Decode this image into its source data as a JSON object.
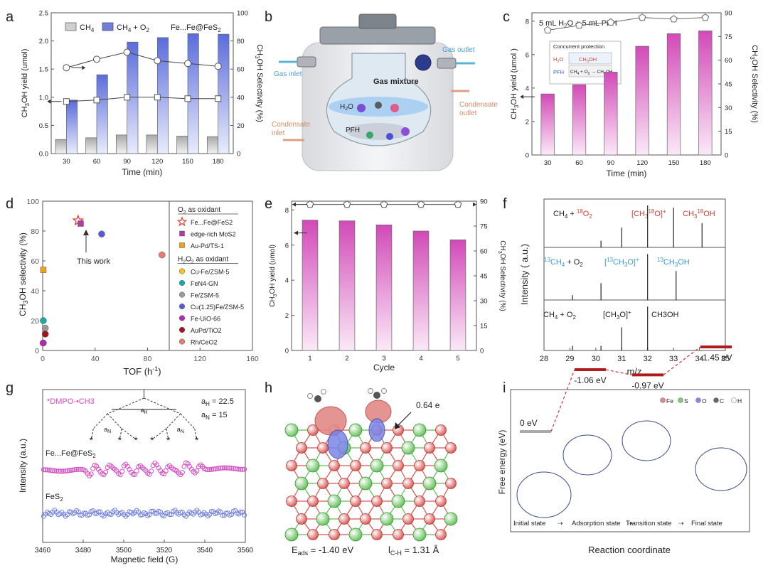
{
  "panel_letters": [
    "a",
    "b",
    "c",
    "d",
    "e",
    "f",
    "g",
    "h",
    "i"
  ],
  "chart_data": [
    {
      "panel": "a",
      "type": "bar",
      "categories": [
        "30",
        "60",
        "90",
        "120",
        "150",
        "180"
      ],
      "xlabel": "Time (min)",
      "ylabel": "CH3OH yield (umol)",
      "ylabel_right": "CH3OH Selectivity (%)",
      "ylim": [
        0,
        2.5
      ],
      "ylim_right": [
        0,
        100
      ],
      "yticks": [
        "0.0",
        "0.5",
        "1.0",
        "1.5",
        "2.0",
        "2.5"
      ],
      "yticks_right": [
        "0",
        "20",
        "40",
        "60",
        "80",
        "100"
      ],
      "legend": [
        "CH4",
        "CH4 + O2"
      ],
      "annotation": "Fe...Fe@FeS2",
      "series": [
        {
          "name": "CH4",
          "values": [
            0.25,
            0.28,
            0.33,
            0.33,
            0.31,
            0.3
          ],
          "color": "#d9d9d9"
        },
        {
          "name": "CH4 + O2",
          "values": [
            0.95,
            1.4,
            1.98,
            2.06,
            2.13,
            2.12
          ],
          "color": "#6f7fe0"
        },
        {
          "axis": "right",
          "values": [
            61,
            67,
            72,
            66,
            64,
            62
          ]
        },
        {
          "axis": "right",
          "values": [
            37,
            38,
            40,
            40,
            39,
            39
          ]
        }
      ]
    },
    {
      "panel": "c",
      "type": "bar",
      "categories": [
        "30",
        "60",
        "90",
        "120",
        "150",
        "180"
      ],
      "xlabel": "Time (min)",
      "ylabel": "CH3OH yield (umol)",
      "ylabel_right": "CH3OH Selectivity (%)",
      "ylim": [
        0,
        8.5
      ],
      "ylim_right": [
        0,
        90
      ],
      "yticks": [
        "0",
        "2",
        "4",
        "6",
        "8"
      ],
      "yticks_right": [
        "0",
        "15",
        "30",
        "45",
        "60",
        "75",
        "90"
      ],
      "annotation": "5 mL H2O + 5 mL PFH",
      "inset": {
        "title": "Concurrent protection",
        "labels": [
          "H2O",
          "CH3OH",
          "PFH",
          "CH4 + O2 → CH3OH"
        ]
      },
      "series": [
        {
          "values": [
            3.65,
            4.2,
            4.95,
            6.5,
            7.25,
            7.42
          ],
          "color": "#d55bbf"
        },
        {
          "axis": "right",
          "values": [
            79,
            82,
            84,
            87,
            86,
            87
          ]
        }
      ]
    },
    {
      "panel": "d",
      "type": "scatter",
      "xlabel": "TOF (h-1)",
      "ylabel": "CH3OH selectivity (%)",
      "xlim": [
        0,
        160
      ],
      "ylim": [
        0,
        100
      ],
      "xticks": [
        "0",
        "40",
        "80",
        "120",
        "160"
      ],
      "yticks": [
        "0",
        "20",
        "40",
        "60",
        "80",
        "100"
      ],
      "annotation": "This work",
      "legend_groups": [
        {
          "title": "O2 as oxidant",
          "items": [
            {
              "name": "Fe...Fe@FeS2",
              "color": "#e0403a",
              "marker": "star"
            },
            {
              "name": "edge-rich MoS2",
              "color": "#b13aa4",
              "marker": "square"
            },
            {
              "name": "Au-Pd/TS-1",
              "color": "#f0a21b",
              "marker": "square"
            }
          ]
        },
        {
          "title": "H2O2 as oxidant",
          "items": [
            {
              "name": "Cu-Fe/ZSM-5",
              "color": "#f5c518",
              "marker": "circle"
            },
            {
              "name": "FeN4-GN",
              "color": "#1aa9a9",
              "marker": "circle"
            },
            {
              "name": "Fe/ZSM-5",
              "color": "#9a9a9a",
              "marker": "circle"
            },
            {
              "name": "Cu(1.25)Fe/ZSM-5",
              "color": "#5a5ad6",
              "marker": "circle"
            },
            {
              "name": "Fe-UiO-66",
              "color": "#b12ab0",
              "marker": "circle"
            },
            {
              "name": "AuPd/TiO2",
              "color": "#a0141e",
              "marker": "circle"
            },
            {
              "name": "Rh/CeO2",
              "color": "#e57b73",
              "marker": "circle"
            }
          ]
        }
      ],
      "points": [
        {
          "name": "Fe...Fe@FeS2",
          "x": 27,
          "y": 87
        },
        {
          "name": "edge-rich MoS2",
          "x": 29,
          "y": 85
        },
        {
          "name": "Au-Pd/TS-1",
          "x": 0.5,
          "y": 54
        },
        {
          "name": "Cu-Fe/ZSM-5",
          "x": 0.5,
          "y": 5
        },
        {
          "name": "FeN4-GN",
          "x": 0.5,
          "y": 20
        },
        {
          "name": "Fe/ZSM-5",
          "x": 2,
          "y": 15
        },
        {
          "name": "Cu(1.25)Fe/ZSM-5",
          "x": 45,
          "y": 78
        },
        {
          "name": "Fe-UiO-66",
          "x": 0.3,
          "y": 5
        },
        {
          "name": "AuPd/TiO2",
          "x": 2,
          "y": 11
        },
        {
          "name": "Rh/CeO2",
          "x": 91,
          "y": 64
        }
      ]
    },
    {
      "panel": "e",
      "type": "bar",
      "categories": [
        "1",
        "2",
        "3",
        "4",
        "5"
      ],
      "xlabel": "Cycle",
      "ylabel": "CH3OH yield (umol)",
      "ylabel_right": "CH3OH Selectivity (%)",
      "ylim": [
        0,
        8.5
      ],
      "ylim_right": [
        0,
        90
      ],
      "yticks": [
        "0",
        "2",
        "4",
        "6",
        "8"
      ],
      "yticks_right": [
        "0",
        "15",
        "30",
        "45",
        "60",
        "75",
        "90"
      ],
      "series": [
        {
          "values": [
            7.42,
            7.38,
            7.15,
            6.8,
            6.3
          ],
          "color": "#d55bbf"
        },
        {
          "axis": "right",
          "values": [
            88,
            88,
            88,
            88,
            88
          ]
        }
      ]
    },
    {
      "panel": "f",
      "type": "line",
      "xlabel": "m/z",
      "ylabel": "Intensity ( a.u.)",
      "xlim": [
        28,
        35
      ],
      "xticks": [
        "28",
        "29",
        "30",
        "31",
        "32",
        "33",
        "34",
        "35"
      ],
      "rows": [
        {
          "labels": [
            "CH4 + 18O2",
            "[CH3 18O]+",
            "CH3 18OH"
          ],
          "sticks": [
            [
              30.2,
              0.15
            ],
            [
              31,
              0.45
            ],
            [
              32,
              0.95
            ],
            [
              33,
              0.9
            ],
            [
              34.1,
              0.55
            ]
          ]
        },
        {
          "labels": [
            "13CH4 + O2",
            "[13CH3O]+",
            "13CH3OH"
          ],
          "sticks": [
            [
              29.1,
              0.1
            ],
            [
              30.2,
              0.35
            ],
            [
              32,
              0.95
            ],
            [
              33.1,
              0.6
            ]
          ]
        },
        {
          "labels": [
            "CH4 + O2",
            "[CH3O]+",
            "CH3OH"
          ],
          "sticks": [
            [
              29.1,
              0.1
            ],
            [
              30.2,
              0.1
            ],
            [
              31,
              0.5
            ],
            [
              32,
              0.95
            ]
          ]
        }
      ]
    },
    {
      "panel": "g",
      "type": "line",
      "xlabel": "Magnetic field (G)",
      "ylabel": "Intensity (a.u.)",
      "xlim": [
        3460,
        3560
      ],
      "xticks": [
        "3460",
        "3480",
        "3500",
        "3520",
        "3540",
        "3560"
      ],
      "annotation": "*DMPO-•CH3",
      "hyperfine": {
        "aH": "aH = 22.5",
        "aN": "aN = 15",
        "aH_label": "aH",
        "aN_label": "aN"
      },
      "series": [
        {
          "name": "Fe...Fe@FeS2",
          "color": "#d64bc4",
          "peaks": [
            3484.5,
            3491.5,
            3499.5,
            3506.5,
            3514,
            3521,
            3529.5,
            3536.5
          ]
        },
        {
          "name": "FeS2",
          "color": "#6f7fe0"
        }
      ]
    },
    {
      "panel": "i",
      "type": "line",
      "xlabel": "Reaction coordinate",
      "ylabel": "Free energy (eV)",
      "legend": [
        "Fe",
        "S",
        "O",
        "C",
        "H"
      ],
      "states": [
        "Initial state",
        "Adsorption state",
        "Transition state",
        "Final state"
      ],
      "values": [
        0,
        -1.06,
        -0.97,
        -1.45
      ],
      "value_labels": [
        "0 eV",
        "-1.06 eV",
        "-0.97 eV",
        "-1.45 eV"
      ]
    }
  ],
  "panel_b": {
    "labels": {
      "gas_inlet": "Gas inlet",
      "gas_outlet": "Gas outlet",
      "gas_mixture": "Gas mixture",
      "h2o": "H2O",
      "pfh": "PFH",
      "condensate_inlet": "Condensate inlet",
      "condensate_outlet": "Condensate outlet"
    }
  },
  "panel_h": {
    "charge": "0.64 e",
    "eads": "Eads = -1.40 eV",
    "lch": "lC-H = 1.31 Å"
  }
}
